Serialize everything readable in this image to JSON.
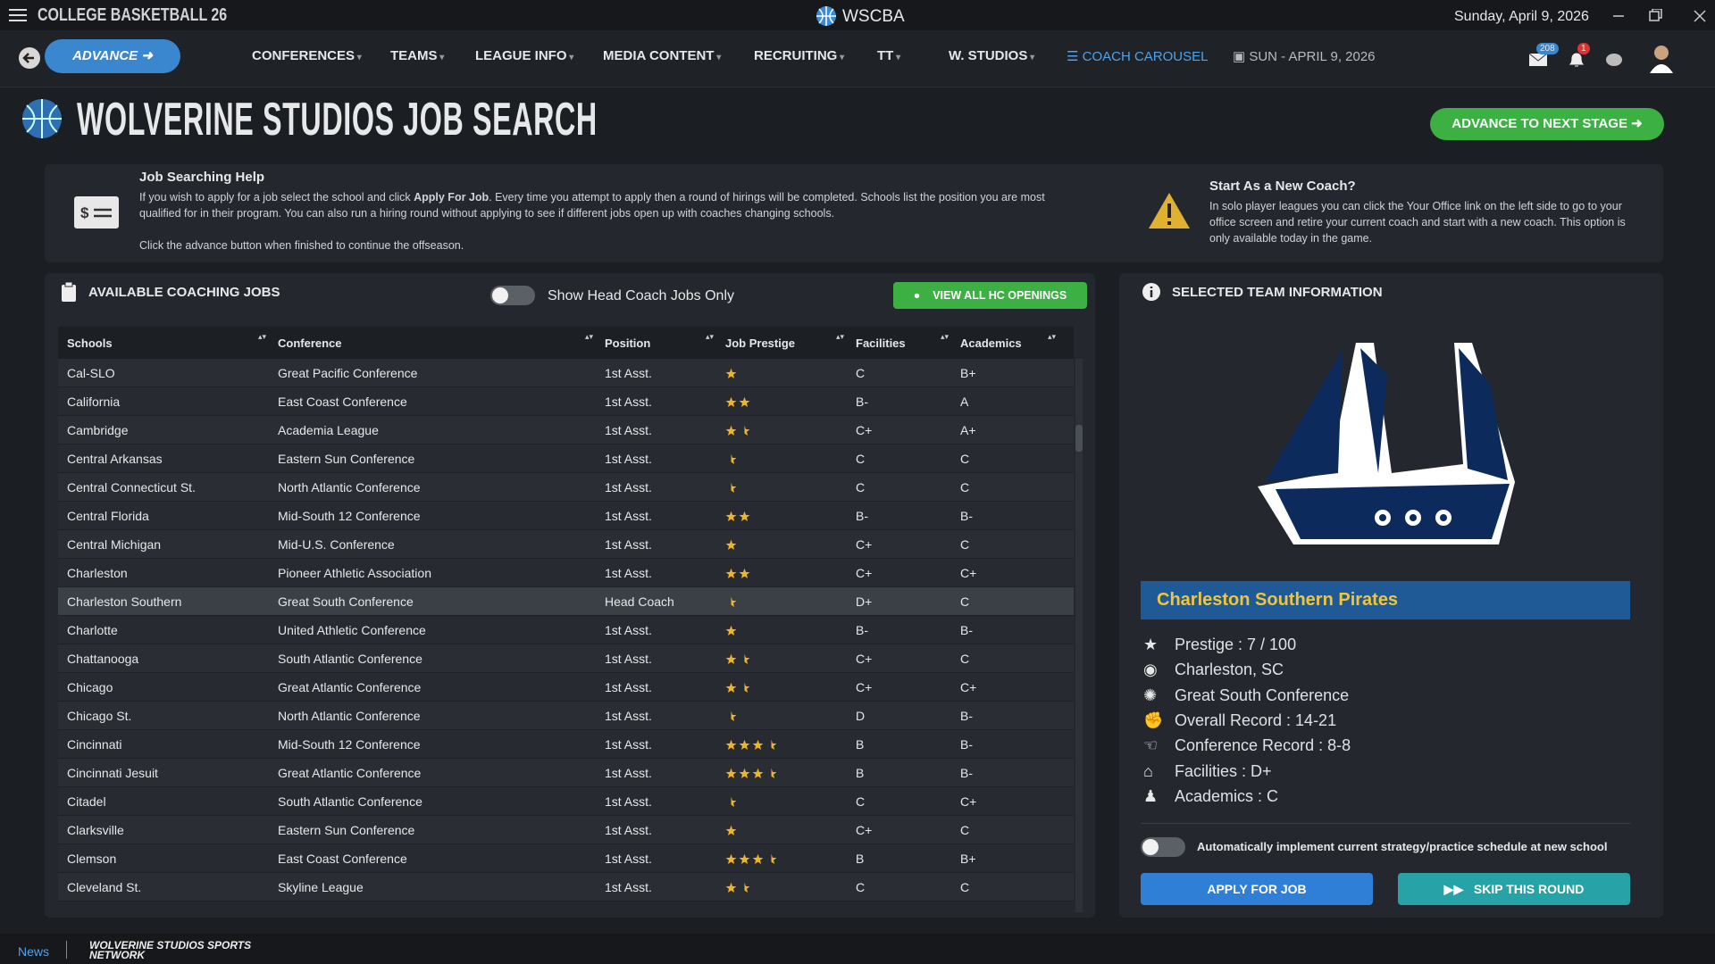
{
  "window": {
    "brand": "COLLEGE BASKETBALL 26",
    "app": "WSCBA",
    "date": "Sunday, April 9, 2026"
  },
  "nav": {
    "advance": "ADVANCE",
    "items": [
      "CONFERENCES",
      "TEAMS",
      "LEAGUE INFO",
      "MEDIA CONTENT",
      "RECRUITING",
      "TT",
      "W. STUDIOS"
    ],
    "active": "COACH CAROUSEL",
    "date": "SUN - APRIL 9, 2026",
    "mail_count": "208",
    "alert_count": "1"
  },
  "page": {
    "title": "WOLVERINE STUDIOS JOB SEARCH",
    "next_stage": "ADVANCE TO NEXT STAGE"
  },
  "help": {
    "title": "Job Searching Help",
    "text1": "If you wish to apply for a job select the school and click ",
    "bold": "Apply For Job",
    "text2": ". Every time you attempt to apply then a round of hirings will be completed. Schools list the position you are most qualified for in their program. You can also run a hiring round without applying to see if different jobs open up with coaches changing schools.",
    "text3": "Click the advance button when finished to continue the offseason."
  },
  "new_coach": {
    "title": "Start As a New Coach?",
    "text": "In solo player leagues you can click the Your Office link on the left side to go to your office screen and retire your current coach and start with a new coach. This option is only available today in the game."
  },
  "jobs": {
    "title": "AVAILABLE COACHING JOBS",
    "toggle": "Show Head Coach Jobs Only",
    "view_all": "VIEW ALL HC OPENINGS",
    "columns": [
      "Schools",
      "Conference",
      "Position",
      "Job Prestige",
      "Facilities",
      "Academics"
    ],
    "rows": [
      [
        "Cal-SLO",
        "Great Pacific Conference",
        "1st Asst.",
        1,
        "C",
        "B+"
      ],
      [
        "California",
        "East Coast Conference",
        "1st Asst.",
        2,
        "B-",
        "A"
      ],
      [
        "Cambridge",
        "Academia League",
        "1st Asst.",
        1.5,
        "C+",
        "A+"
      ],
      [
        "Central Arkansas",
        "Eastern Sun Conference",
        "1st Asst.",
        0.5,
        "C",
        "C"
      ],
      [
        "Central Connecticut St.",
        "North Atlantic Conference",
        "1st Asst.",
        0.5,
        "C",
        "C"
      ],
      [
        "Central Florida",
        "Mid-South 12 Conference",
        "1st Asst.",
        2,
        "B-",
        "B-"
      ],
      [
        "Central Michigan",
        "Mid-U.S. Conference",
        "1st Asst.",
        1,
        "C+",
        "C"
      ],
      [
        "Charleston",
        "Pioneer Athletic Association",
        "1st Asst.",
        2,
        "C+",
        "C+"
      ],
      [
        "Charleston Southern",
        "Great South Conference",
        "Head Coach",
        0.5,
        "D+",
        "C"
      ],
      [
        "Charlotte",
        "United Athletic Conference",
        "1st Asst.",
        1,
        "B-",
        "B-"
      ],
      [
        "Chattanooga",
        "South Atlantic Conference",
        "1st Asst.",
        1.5,
        "C+",
        "C"
      ],
      [
        "Chicago",
        "Great Atlantic Conference",
        "1st Asst.",
        1.5,
        "C+",
        "C+"
      ],
      [
        "Chicago St.",
        "North Atlantic Conference",
        "1st Asst.",
        0.5,
        "D",
        "B-"
      ],
      [
        "Cincinnati",
        "Mid-South 12 Conference",
        "1st Asst.",
        3.5,
        "B",
        "B-"
      ],
      [
        "Cincinnati Jesuit",
        "Great Atlantic Conference",
        "1st Asst.",
        3.5,
        "B",
        "B-"
      ],
      [
        "Citadel",
        "South Atlantic Conference",
        "1st Asst.",
        0.5,
        "C",
        "C+"
      ],
      [
        "Clarksville",
        "Eastern Sun Conference",
        "1st Asst.",
        1,
        "C+",
        "C"
      ],
      [
        "Clemson",
        "East Coast Conference",
        "1st Asst.",
        3.5,
        "B",
        "B+"
      ],
      [
        "Cleveland St.",
        "Skyline League",
        "1st Asst.",
        1.5,
        "C",
        "C"
      ]
    ],
    "selected_row": 8
  },
  "team": {
    "title": "SELECTED TEAM INFORMATION",
    "name": "Charleston Southern Pirates",
    "info": [
      "Prestige : 7 / 100",
      "Charleston, SC",
      "Great South Conference",
      "Overall Record : 14-21",
      "Conference Record : 8-8",
      "Facilities : D+",
      "Academics : C"
    ],
    "auto": "Automatically implement current strategy/practice schedule at new school",
    "apply": "APPLY FOR JOB",
    "skip": "SKIP THIS ROUND"
  },
  "footer": {
    "news": "News",
    "network": "WOLVERINE STUDIOS SPORTS NETWORK"
  }
}
